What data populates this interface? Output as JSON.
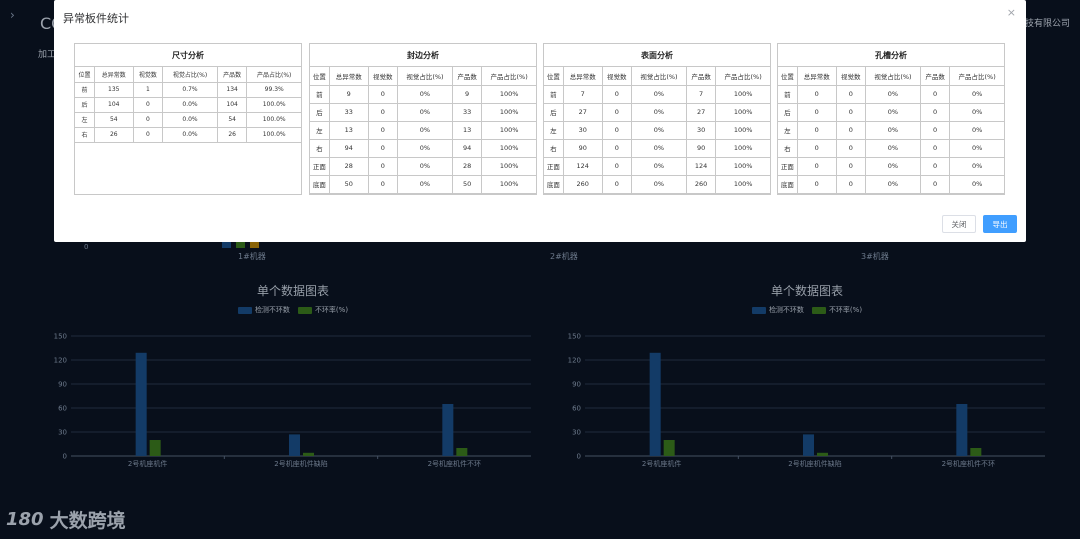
{
  "background": {
    "title": "CO",
    "subtitle": "加工",
    "company": "科技有限公司",
    "zero_tick": "0",
    "machines": [
      "1#机器",
      "2#机器",
      "3#机器"
    ],
    "colors": {
      "bg": "#0b1424",
      "blue": "#1a4f8a",
      "green": "#3b7a1f",
      "orange": "#b8860b"
    }
  },
  "charts": [
    {
      "title": "单个数据图表",
      "legend": [
        "检测不环数",
        "不环率(%)"
      ],
      "chart_data": {
        "type": "bar",
        "categories": [
          "2号机座机件",
          "2号机座机件缺陷",
          "2号机座机件不环"
        ],
        "series": [
          {
            "name": "检测不环数",
            "values": [
              129,
              27,
              65
            ],
            "color": "#1a4f8a"
          },
          {
            "name": "不环率(%)",
            "values": [
              20,
              4,
              10
            ],
            "color": "#3b7a1f"
          }
        ],
        "yticks": [
          "0",
          "30",
          "60",
          "90",
          "120",
          "150"
        ],
        "ylim": [
          0,
          150
        ]
      }
    },
    {
      "title": "单个数据图表",
      "legend": [
        "检测不环数",
        "不环率(%)"
      ],
      "chart_data": {
        "type": "bar",
        "categories": [
          "2号机座机件",
          "2号机座机件缺陷",
          "2号机座机件不环"
        ],
        "series": [
          {
            "name": "检测不环数",
            "values": [
              129,
              27,
              65
            ],
            "color": "#1a4f8a"
          },
          {
            "name": "不环率(%)",
            "values": [
              20,
              4,
              10
            ],
            "color": "#3b7a1f"
          }
        ],
        "yticks": [
          "0",
          "30",
          "60",
          "90",
          "120",
          "150"
        ],
        "ylim": [
          0,
          150
        ]
      }
    }
  ],
  "watermark": {
    "logo": "180",
    "text": "大数跨境"
  },
  "modal": {
    "title": "异常板件统计",
    "close_icon": "×",
    "close_label": "关闭",
    "export_label": "导出",
    "panels": [
      {
        "title": "尺寸分析",
        "headers": [
          "位置",
          "总异常数",
          "视觉数",
          "视觉占比(%)",
          "产品数",
          "产品占比(%)"
        ],
        "rows": [
          [
            "前",
            "135",
            "1",
            "0.7%",
            "134",
            "99.3%"
          ],
          [
            "后",
            "104",
            "0",
            "0.0%",
            "104",
            "100.0%"
          ],
          [
            "左",
            "54",
            "0",
            "0.0%",
            "54",
            "100.0%"
          ],
          [
            "右",
            "26",
            "0",
            "0.0%",
            "26",
            "100.0%"
          ]
        ]
      },
      {
        "title": "封边分析",
        "headers": [
          "位置",
          "总异常数",
          "视觉数",
          "视觉占比(%)",
          "产品数",
          "产品占比(%)"
        ],
        "rows": [
          [
            "前",
            "9",
            "0",
            "0%",
            "9",
            "100%"
          ],
          [
            "后",
            "33",
            "0",
            "0%",
            "33",
            "100%"
          ],
          [
            "左",
            "13",
            "0",
            "0%",
            "13",
            "100%"
          ],
          [
            "右",
            "94",
            "0",
            "0%",
            "94",
            "100%"
          ],
          [
            "正面",
            "28",
            "0",
            "0%",
            "28",
            "100%"
          ],
          [
            "底面",
            "50",
            "0",
            "0%",
            "50",
            "100%"
          ]
        ]
      },
      {
        "title": "表面分析",
        "headers": [
          "位置",
          "总异常数",
          "视觉数",
          "视觉占比(%)",
          "产品数",
          "产品占比(%)"
        ],
        "rows": [
          [
            "前",
            "7",
            "0",
            "0%",
            "7",
            "100%"
          ],
          [
            "后",
            "27",
            "0",
            "0%",
            "27",
            "100%"
          ],
          [
            "左",
            "30",
            "0",
            "0%",
            "30",
            "100%"
          ],
          [
            "右",
            "90",
            "0",
            "0%",
            "90",
            "100%"
          ],
          [
            "正面",
            "124",
            "0",
            "0%",
            "124",
            "100%"
          ],
          [
            "底面",
            "260",
            "0",
            "0%",
            "260",
            "100%"
          ]
        ]
      },
      {
        "title": "孔槽分析",
        "headers": [
          "位置",
          "总异常数",
          "视觉数",
          "视觉占比(%)",
          "产品数",
          "产品占比(%)"
        ],
        "rows": [
          [
            "前",
            "0",
            "0",
            "0%",
            "0",
            "0%"
          ],
          [
            "后",
            "0",
            "0",
            "0%",
            "0",
            "0%"
          ],
          [
            "左",
            "0",
            "0",
            "0%",
            "0",
            "0%"
          ],
          [
            "右",
            "0",
            "0",
            "0%",
            "0",
            "0%"
          ],
          [
            "正面",
            "0",
            "0",
            "0%",
            "0",
            "0%"
          ],
          [
            "底面",
            "0",
            "0",
            "0%",
            "0",
            "0%"
          ]
        ]
      }
    ]
  }
}
